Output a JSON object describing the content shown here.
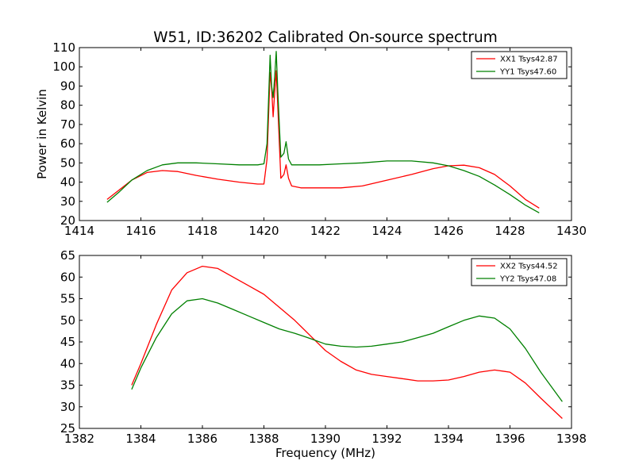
{
  "figure": {
    "title": "W51, ID:36202 Calibrated On-source spectrum",
    "shared_xlabel": "Frequency (MHz)"
  },
  "chart_data": [
    {
      "type": "line",
      "title": "W51, ID:36202 Calibrated On-source spectrum",
      "xlabel": "",
      "ylabel": "Power in Kelvin",
      "xlim": [
        1414,
        1430
      ],
      "ylim": [
        20,
        110
      ],
      "xticks": [
        1414,
        1416,
        1418,
        1420,
        1422,
        1424,
        1426,
        1428,
        1430
      ],
      "yticks": [
        20,
        30,
        40,
        50,
        60,
        70,
        80,
        90,
        100,
        110
      ],
      "grid": false,
      "legend": "top-right",
      "series": [
        {
          "name": "XX1 Tsys42.87",
          "color": "#ff0000",
          "x": [
            1414.9,
            1415.3,
            1415.7,
            1416.2,
            1416.7,
            1417.2,
            1417.8,
            1418.5,
            1419.2,
            1419.8,
            1420.0,
            1420.1,
            1420.2,
            1420.25,
            1420.3,
            1420.35,
            1420.4,
            1420.45,
            1420.55,
            1420.65,
            1420.72,
            1420.8,
            1420.9,
            1421.2,
            1421.8,
            1422.5,
            1423.2,
            1424.0,
            1424.8,
            1425.5,
            1426.0,
            1426.5,
            1427.0,
            1427.5,
            1428.0,
            1428.5,
            1428.95
          ],
          "y": [
            31,
            36,
            41,
            45,
            46,
            45.5,
            43.5,
            41.5,
            40,
            39,
            39,
            52,
            97,
            89,
            74,
            87,
            98,
            80,
            42,
            44,
            49,
            42,
            38,
            37,
            37,
            37,
            38,
            41,
            44,
            47,
            48.5,
            48.8,
            47.5,
            44,
            38,
            31,
            26.5
          ]
        },
        {
          "name": "YY1 Tsys47.60",
          "color": "#008000",
          "x": [
            1414.9,
            1415.3,
            1415.7,
            1416.2,
            1416.7,
            1417.2,
            1417.8,
            1418.5,
            1419.2,
            1419.8,
            1420.0,
            1420.1,
            1420.2,
            1420.25,
            1420.3,
            1420.35,
            1420.4,
            1420.45,
            1420.55,
            1420.65,
            1420.72,
            1420.8,
            1420.9,
            1421.2,
            1421.8,
            1422.5,
            1423.2,
            1424.0,
            1424.8,
            1425.5,
            1426.0,
            1426.5,
            1427.0,
            1427.5,
            1428.0,
            1428.5,
            1428.95
          ],
          "y": [
            29.5,
            35,
            41,
            46,
            49,
            50,
            50,
            49.5,
            49,
            49,
            49.5,
            60,
            106,
            90,
            84,
            95,
            108,
            88,
            53,
            55,
            61,
            52,
            49,
            49,
            49,
            49.5,
            50,
            51,
            51,
            50,
            48.5,
            46,
            43,
            38.5,
            33.5,
            28,
            24
          ]
        }
      ]
    },
    {
      "type": "line",
      "title": "",
      "xlabel": "Frequency (MHz)",
      "ylabel": "",
      "xlim": [
        1382,
        1398
      ],
      "ylim": [
        25,
        65
      ],
      "xticks": [
        1382,
        1384,
        1386,
        1388,
        1390,
        1392,
        1394,
        1396,
        1398
      ],
      "yticks": [
        25,
        30,
        35,
        40,
        45,
        50,
        55,
        60,
        65
      ],
      "grid": false,
      "legend": "top-right",
      "series": [
        {
          "name": "XX2 Tsys44.52",
          "color": "#ff0000",
          "x": [
            1383.7,
            1384.0,
            1384.5,
            1385.0,
            1385.5,
            1386.0,
            1386.5,
            1387.0,
            1387.5,
            1388.0,
            1388.5,
            1389.0,
            1389.5,
            1390.0,
            1390.5,
            1391.0,
            1391.5,
            1392.0,
            1392.5,
            1393.0,
            1393.5,
            1394.0,
            1394.5,
            1395.0,
            1395.5,
            1396.0,
            1396.5,
            1397.0,
            1397.7
          ],
          "y": [
            35,
            40,
            49,
            57,
            61,
            62.5,
            62,
            60,
            58,
            56,
            53,
            50,
            46.5,
            43,
            40.5,
            38.5,
            37.5,
            37,
            36.5,
            36,
            36,
            36.2,
            37,
            38,
            38.5,
            38,
            35.5,
            32,
            27.3
          ]
        },
        {
          "name": "YY2 Tsys47.08",
          "color": "#008000",
          "x": [
            1383.7,
            1384.0,
            1384.5,
            1385.0,
            1385.5,
            1386.0,
            1386.5,
            1387.0,
            1387.5,
            1388.0,
            1388.5,
            1389.0,
            1389.5,
            1390.0,
            1390.5,
            1391.0,
            1391.5,
            1392.0,
            1392.5,
            1393.0,
            1393.5,
            1394.0,
            1394.5,
            1395.0,
            1395.5,
            1396.0,
            1396.5,
            1397.0,
            1397.7
          ],
          "y": [
            34,
            39,
            46,
            51.5,
            54.5,
            55,
            54,
            52.5,
            51,
            49.5,
            48,
            47,
            45.8,
            44.5,
            44,
            43.8,
            44,
            44.5,
            45,
            46,
            47,
            48.5,
            50,
            51,
            50.5,
            48,
            43.5,
            38,
            31.2
          ]
        }
      ]
    }
  ]
}
